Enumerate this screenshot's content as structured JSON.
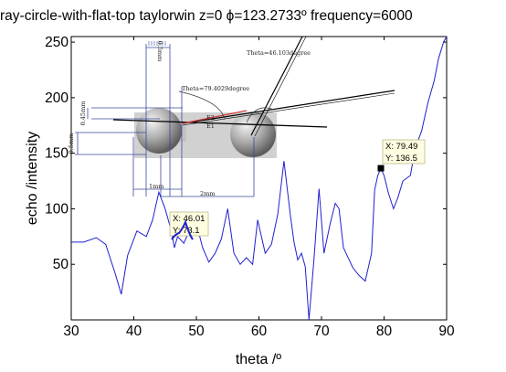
{
  "chart_data": {
    "type": "line",
    "title": "ray-circle-with-flat-top  taylorwin  z=0  ϕ=123.2733º  frequency=6000",
    "xlabel": "theta /º",
    "ylabel": "echo /intensity",
    "xlim": [
      30,
      90
    ],
    "ylim": [
      0,
      255
    ],
    "xticks": [
      30,
      40,
      50,
      60,
      70,
      80,
      90
    ],
    "yticks": [
      50,
      100,
      150,
      200,
      250
    ],
    "grid": false,
    "series": [
      {
        "color": "#1f1fd0",
        "x": [
          30,
          32,
          34,
          35.5,
          37,
          38,
          39,
          40.5,
          42,
          43,
          44,
          45,
          46,
          46.5,
          47,
          48,
          49,
          50,
          51,
          52,
          53,
          54,
          55,
          56,
          57,
          58,
          59,
          59.8,
          61,
          62,
          63,
          64,
          65,
          65.6,
          66.2,
          66.8,
          67.4,
          68,
          68.8,
          69.6,
          70.4,
          71.4,
          72.2,
          72.8,
          73.5,
          75,
          76,
          77,
          78,
          78.5,
          79,
          79.49,
          80,
          80.7,
          81.5,
          82.2,
          83,
          84.2,
          85,
          86,
          87,
          88,
          88.7,
          89.5,
          90
        ],
        "y": [
          70,
          70,
          74,
          68,
          42,
          23,
          58,
          80,
          75,
          90,
          115,
          100,
          80,
          65,
          75,
          69,
          82,
          87,
          65,
          52,
          60,
          73,
          100,
          60,
          50,
          56,
          50,
          90,
          60,
          68,
          95,
          143,
          95,
          70,
          54,
          60,
          48,
          0,
          55,
          118,
          60,
          87,
          105,
          100,
          65,
          47,
          40,
          35,
          60,
          117,
          130,
          136.5,
          130,
          114,
          100,
          110,
          125,
          130,
          155,
          170,
          195,
          215,
          235,
          250,
          255
        ]
      }
    ],
    "datatips": [
      {
        "x_label": "X: 46.01",
        "y_label": "Y: 73.1",
        "x": 46.01,
        "y": 73.1
      },
      {
        "x_label": "X: 79.49",
        "y_label": "Y: 136.5",
        "x": 79.49,
        "y": 136.5
      }
    ],
    "inset": {
      "labels": {
        "theta1": "Theta=46.103degree",
        "theta2": "Theta=79.4029degree",
        "e2": "E2",
        "e1": "E1",
        "dim_top": "0.5mm",
        "dim_left1": "0.45mm",
        "dim_left2": "0.5mm",
        "dim_bottom1": "1mm",
        "dim_bottom2": "2mm"
      }
    }
  }
}
